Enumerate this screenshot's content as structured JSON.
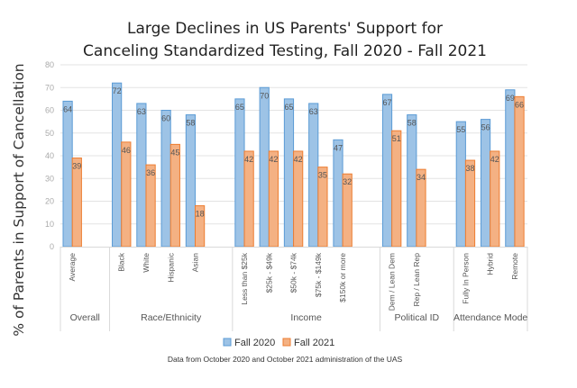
{
  "chart_data": {
    "type": "bar",
    "title_lines": [
      "Large Declines in US Parents' Support for",
      "Canceling Standardized Testing, Fall 2020 - Fall 2021"
    ],
    "ylabel": "% of Parents in Support of Cancellation",
    "xlabel": "",
    "ylim": [
      0,
      80
    ],
    "yticks": [
      0,
      10,
      20,
      30,
      40,
      50,
      60,
      70,
      80
    ],
    "grid": true,
    "legend_position": "bottom",
    "footnote": "Data from October 2020 and October 2021 administration of the UAS",
    "groups": [
      {
        "name": "Overall",
        "categories": [
          "Average"
        ]
      },
      {
        "name": "Race/Ethnicity",
        "categories": [
          "Black",
          "White",
          "Hispanic",
          "Asian"
        ]
      },
      {
        "name": "Income",
        "categories": [
          "Less than $25k",
          "$25k - $49k",
          "$50k - $74k",
          "$75k - $149k",
          "$150k or more"
        ]
      },
      {
        "name": "Political ID",
        "categories": [
          "Dem / Lean Dem",
          "Rep / Lean Rep"
        ]
      },
      {
        "name": "Attendance Mode",
        "categories": [
          "Fully In Person",
          "Hybrid",
          "Remote"
        ]
      }
    ],
    "categories": [
      "Average",
      "Black",
      "White",
      "Hispanic",
      "Asian",
      "Less than $25k",
      "$25k - $49k",
      "$50k - $74k",
      "$75k - $149k",
      "$150k or more",
      "Dem / Lean Dem",
      "Rep / Lean Rep",
      "Fully In Person",
      "Hybrid",
      "Remote"
    ],
    "series": [
      {
        "name": "Fall 2020",
        "color": "#9dc3e6",
        "border": "#5b9bd5",
        "values": [
          64,
          72,
          63,
          60,
          58,
          65,
          70,
          65,
          63,
          47,
          67,
          58,
          55,
          56,
          69
        ]
      },
      {
        "name": "Fall 2021",
        "color": "#f4b183",
        "border": "#ed7d31",
        "values": [
          39,
          46,
          36,
          45,
          18,
          42,
          42,
          42,
          35,
          32,
          51,
          34,
          38,
          42,
          66
        ]
      }
    ]
  }
}
